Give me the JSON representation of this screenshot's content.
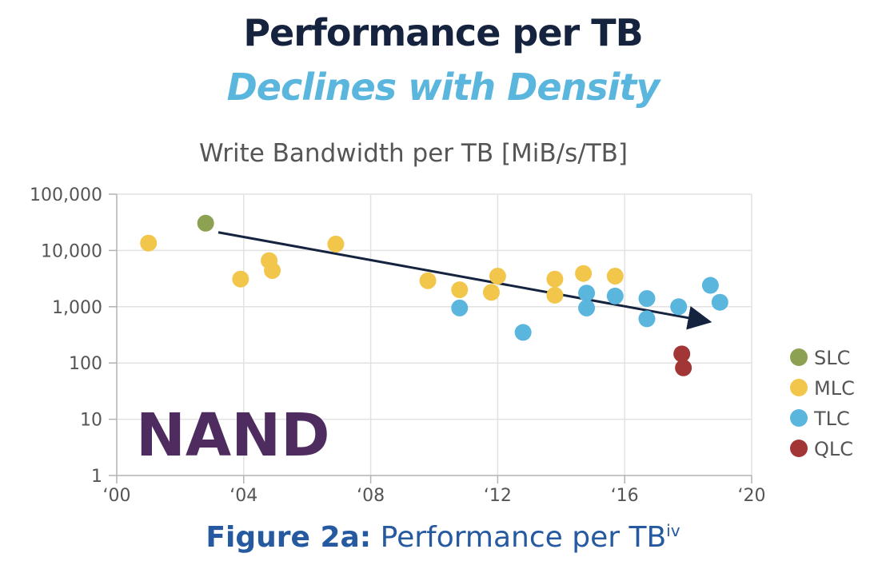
{
  "title": "Performance per TB",
  "subtitle": "Declines with Density",
  "caption": {
    "label": "Figure 2a:",
    "text": " Performance per TB",
    "superscript": "iv"
  },
  "colors": {
    "SLC": "#8ca252",
    "MLC": "#f2c64a",
    "TLC": "#5bb6de",
    "QLC": "#a23535",
    "title": "#15233f",
    "subtitle": "#5bb6de",
    "caption": "#2559a0",
    "nand": "#4e2c5f",
    "arrow": "#15233f"
  },
  "chart_data": {
    "type": "scatter",
    "title": "Write Bandwidth per TB [MiB/s/TB]",
    "xlabel": "",
    "ylabel": "",
    "yscale": "log",
    "xlim": [
      2000,
      2020
    ],
    "ylim": [
      1,
      100000
    ],
    "x_ticks": [
      2000,
      2004,
      2008,
      2012,
      2016,
      2020
    ],
    "x_tick_labels": [
      "‘00",
      "‘04",
      "‘08",
      "‘12",
      "‘16",
      "‘20"
    ],
    "y_ticks": [
      1,
      10,
      100,
      1000,
      10000,
      100000
    ],
    "y_tick_labels": [
      "1",
      "10",
      "100",
      "1,000",
      "10,000",
      "100,000"
    ],
    "grid": true,
    "legend_position": "bottom-right",
    "annotation": "NAND",
    "trend_arrow": {
      "from": [
        2003.2,
        21000
      ],
      "to": [
        2018.6,
        550
      ]
    },
    "series": [
      {
        "name": "SLC",
        "points": [
          [
            2002.8,
            30500
          ]
        ]
      },
      {
        "name": "MLC",
        "points": [
          [
            2001.0,
            13500
          ],
          [
            2003.9,
            3100
          ],
          [
            2004.8,
            6600
          ],
          [
            2004.9,
            4400
          ],
          [
            2006.9,
            13000
          ],
          [
            2009.8,
            2900
          ],
          [
            2010.8,
            2000
          ],
          [
            2011.8,
            1800
          ],
          [
            2012.0,
            3500
          ],
          [
            2013.8,
            3100
          ],
          [
            2013.8,
            1600
          ],
          [
            2014.7,
            3900
          ],
          [
            2015.7,
            3500
          ]
        ]
      },
      {
        "name": "TLC",
        "points": [
          [
            2010.8,
            950
          ],
          [
            2012.8,
            350
          ],
          [
            2014.8,
            1750
          ],
          [
            2014.8,
            950
          ],
          [
            2015.7,
            1550
          ],
          [
            2016.7,
            1400
          ],
          [
            2016.7,
            610
          ],
          [
            2017.7,
            1000
          ],
          [
            2018.7,
            2400
          ],
          [
            2019.0,
            1200
          ]
        ]
      },
      {
        "name": "QLC",
        "points": [
          [
            2017.8,
            145
          ],
          [
            2017.85,
            82
          ]
        ]
      }
    ]
  }
}
